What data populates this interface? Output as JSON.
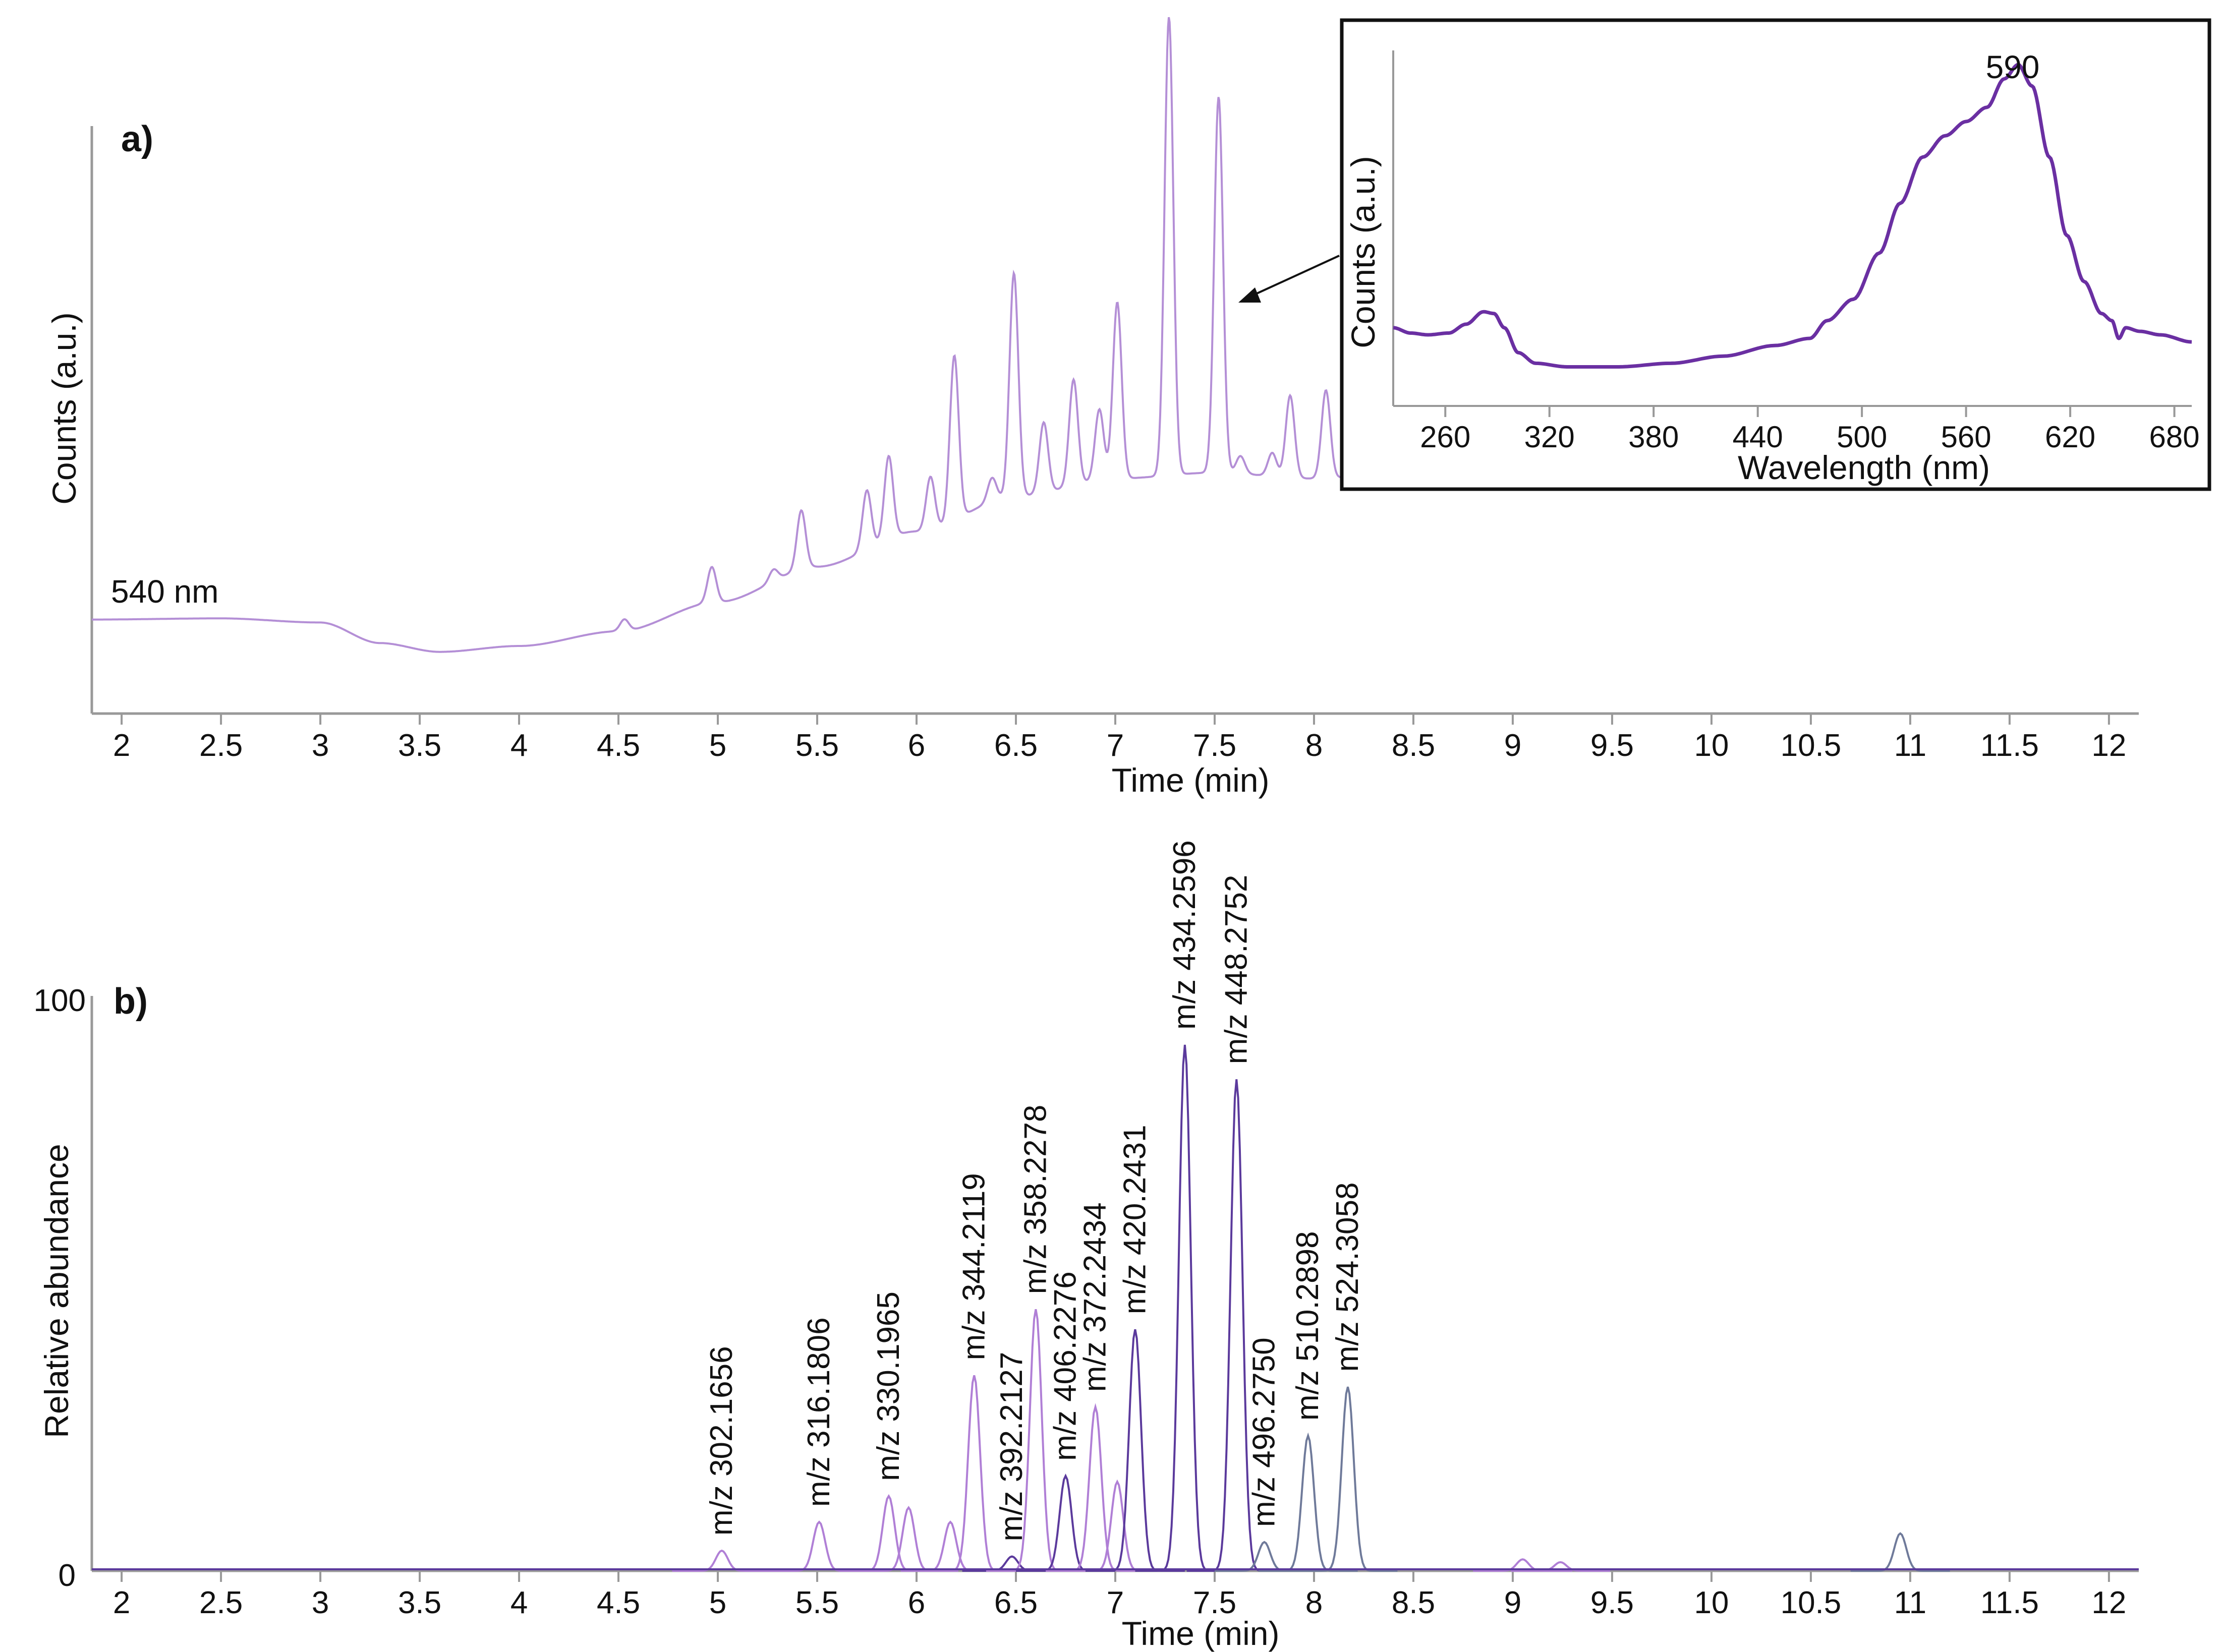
{
  "chart_data": [
    {
      "panel": "a)",
      "type": "line",
      "xlabel": "Time (min)",
      "ylabel": "Counts (a.u.)",
      "xlim": [
        1.85,
        12.15
      ],
      "x_ticks": [
        "2",
        "2.5",
        "3",
        "3.5",
        "4",
        "4.5",
        "5",
        "5.5",
        "6",
        "6.5",
        "7",
        "7.5",
        "8",
        "8.5",
        "9",
        "9.5",
        "10",
        "10.5",
        "11",
        "11.5",
        "12"
      ],
      "trace_label": "540 nm",
      "color": "#b48fd6",
      "baseline_points": [
        [
          1.85,
          0.16
        ],
        [
          2.5,
          0.162
        ],
        [
          3.0,
          0.155
        ],
        [
          3.3,
          0.12
        ],
        [
          3.6,
          0.105
        ],
        [
          4.0,
          0.115
        ],
        [
          4.5,
          0.14
        ],
        [
          5.0,
          0.19
        ],
        [
          5.5,
          0.25
        ],
        [
          6.0,
          0.31
        ],
        [
          6.5,
          0.37
        ],
        [
          7.0,
          0.4
        ],
        [
          7.5,
          0.41
        ],
        [
          8.0,
          0.4
        ],
        [
          8.5,
          0.41
        ],
        [
          9.0,
          0.43
        ],
        [
          10.0,
          0.48
        ],
        [
          11.0,
          0.53
        ],
        [
          12.15,
          0.55
        ]
      ],
      "peaks": [
        {
          "x": 4.53,
          "h": 0.02
        },
        {
          "x": 4.97,
          "h": 0.06
        },
        {
          "x": 5.28,
          "h": 0.02
        },
        {
          "x": 5.42,
          "h": 0.1
        },
        {
          "x": 5.75,
          "h": 0.1
        },
        {
          "x": 5.86,
          "h": 0.14
        },
        {
          "x": 6.07,
          "h": 0.09
        },
        {
          "x": 6.19,
          "h": 0.28
        },
        {
          "x": 6.38,
          "h": 0.04
        },
        {
          "x": 6.49,
          "h": 0.38
        },
        {
          "x": 6.64,
          "h": 0.12
        },
        {
          "x": 6.79,
          "h": 0.18
        },
        {
          "x": 6.92,
          "h": 0.12
        },
        {
          "x": 7.01,
          "h": 0.3
        },
        {
          "x": 7.27,
          "h": 0.78
        },
        {
          "x": 7.52,
          "h": 0.64
        },
        {
          "x": 7.63,
          "h": 0.03
        },
        {
          "x": 7.79,
          "h": 0.04
        },
        {
          "x": 7.88,
          "h": 0.14
        },
        {
          "x": 8.06,
          "h": 0.15
        },
        {
          "x": 8.6,
          "h": 0.01
        }
      ],
      "inset": {
        "type": "line",
        "xlabel": "Wavelength (nm)",
        "ylabel": "Counts (a.u.)",
        "xlim": [
          230,
          690
        ],
        "x_ticks": [
          "260",
          "320",
          "380",
          "440",
          "500",
          "560",
          "620",
          "680"
        ],
        "peak_label": "590",
        "color": "#6a2fa2",
        "points": [
          [
            230,
            0.22
          ],
          [
            240,
            0.205
          ],
          [
            250,
            0.2
          ],
          [
            262,
            0.205
          ],
          [
            272,
            0.23
          ],
          [
            282,
            0.265
          ],
          [
            288,
            0.26
          ],
          [
            294,
            0.22
          ],
          [
            302,
            0.15
          ],
          [
            312,
            0.12
          ],
          [
            330,
            0.11
          ],
          [
            360,
            0.11
          ],
          [
            390,
            0.12
          ],
          [
            420,
            0.14
          ],
          [
            450,
            0.17
          ],
          [
            470,
            0.19
          ],
          [
            480,
            0.24
          ],
          [
            495,
            0.3
          ],
          [
            510,
            0.43
          ],
          [
            522,
            0.57
          ],
          [
            535,
            0.7
          ],
          [
            548,
            0.76
          ],
          [
            560,
            0.8
          ],
          [
            572,
            0.84
          ],
          [
            582,
            0.92
          ],
          [
            590,
            0.96
          ],
          [
            598,
            0.9
          ],
          [
            608,
            0.7
          ],
          [
            618,
            0.48
          ],
          [
            628,
            0.35
          ],
          [
            638,
            0.26
          ],
          [
            644,
            0.24
          ],
          [
            648,
            0.19
          ],
          [
            652,
            0.22
          ],
          [
            660,
            0.21
          ],
          [
            672,
            0.2
          ],
          [
            690,
            0.18
          ]
        ]
      }
    },
    {
      "panel": "b)",
      "type": "line",
      "xlabel": "Time (min)",
      "ylabel": "Relative abundance",
      "xlim": [
        1.85,
        12.15
      ],
      "ylim": [
        0,
        100
      ],
      "y_ticks": [
        "100",
        "0"
      ],
      "x_ticks": [
        "2",
        "2.5",
        "3",
        "3.5",
        "4",
        "4.5",
        "5",
        "5.5",
        "6",
        "6.5",
        "7",
        "7.5",
        "8",
        "8.5",
        "9",
        "9.5",
        "10",
        "10.5",
        "11",
        "11.5",
        "12"
      ],
      "colors": [
        "#b07fd6",
        "#5b3a9c",
        "#6f7a9a"
      ],
      "peaks": [
        {
          "label": "m/z 302.1656",
          "x": 5.02,
          "y": 3.5,
          "series": 0
        },
        {
          "label": "m/z 316.1806",
          "x": 5.51,
          "y": 8.5,
          "series": 0
        },
        {
          "label": "m/z 330.1965",
          "x": 5.86,
          "y": 13.0,
          "series": 0
        },
        {
          "label": "",
          "x": 5.96,
          "y": 11.0,
          "series": 0
        },
        {
          "label": "",
          "x": 6.17,
          "y": 8.5,
          "series": 0
        },
        {
          "label": "m/z 344.2119",
          "x": 6.29,
          "y": 34.0,
          "series": 0
        },
        {
          "label": "m/z 392.2127",
          "x": 6.48,
          "y": 2.5,
          "series": 1
        },
        {
          "label": "m/z 358.2278",
          "x": 6.6,
          "y": 45.5,
          "series": 0
        },
        {
          "label": "m/z 406.2276",
          "x": 6.75,
          "y": 16.5,
          "series": 1
        },
        {
          "label": "m/z 372.2434",
          "x": 6.9,
          "y": 28.5,
          "series": 0
        },
        {
          "label": "",
          "x": 7.01,
          "y": 15.5,
          "series": 0
        },
        {
          "label": "m/z 420.2431",
          "x": 7.1,
          "y": 42.0,
          "series": 1
        },
        {
          "label": "m/z 434.2596",
          "x": 7.35,
          "y": 91.5,
          "series": 1
        },
        {
          "label": "m/z 448.2752",
          "x": 7.61,
          "y": 85.5,
          "series": 1
        },
        {
          "label": "m/z 496.2750",
          "x": 7.75,
          "y": 5.0,
          "series": 2
        },
        {
          "label": "m/z 510.2898",
          "x": 7.97,
          "y": 23.5,
          "series": 2
        },
        {
          "label": "m/z 524.3058",
          "x": 8.17,
          "y": 32.0,
          "series": 2
        },
        {
          "label": "",
          "x": 9.05,
          "y": 2.0,
          "series": 0
        },
        {
          "label": "",
          "x": 9.24,
          "y": 1.5,
          "series": 0
        },
        {
          "label": "",
          "x": 10.95,
          "y": 6.5,
          "series": 2
        }
      ]
    }
  ]
}
